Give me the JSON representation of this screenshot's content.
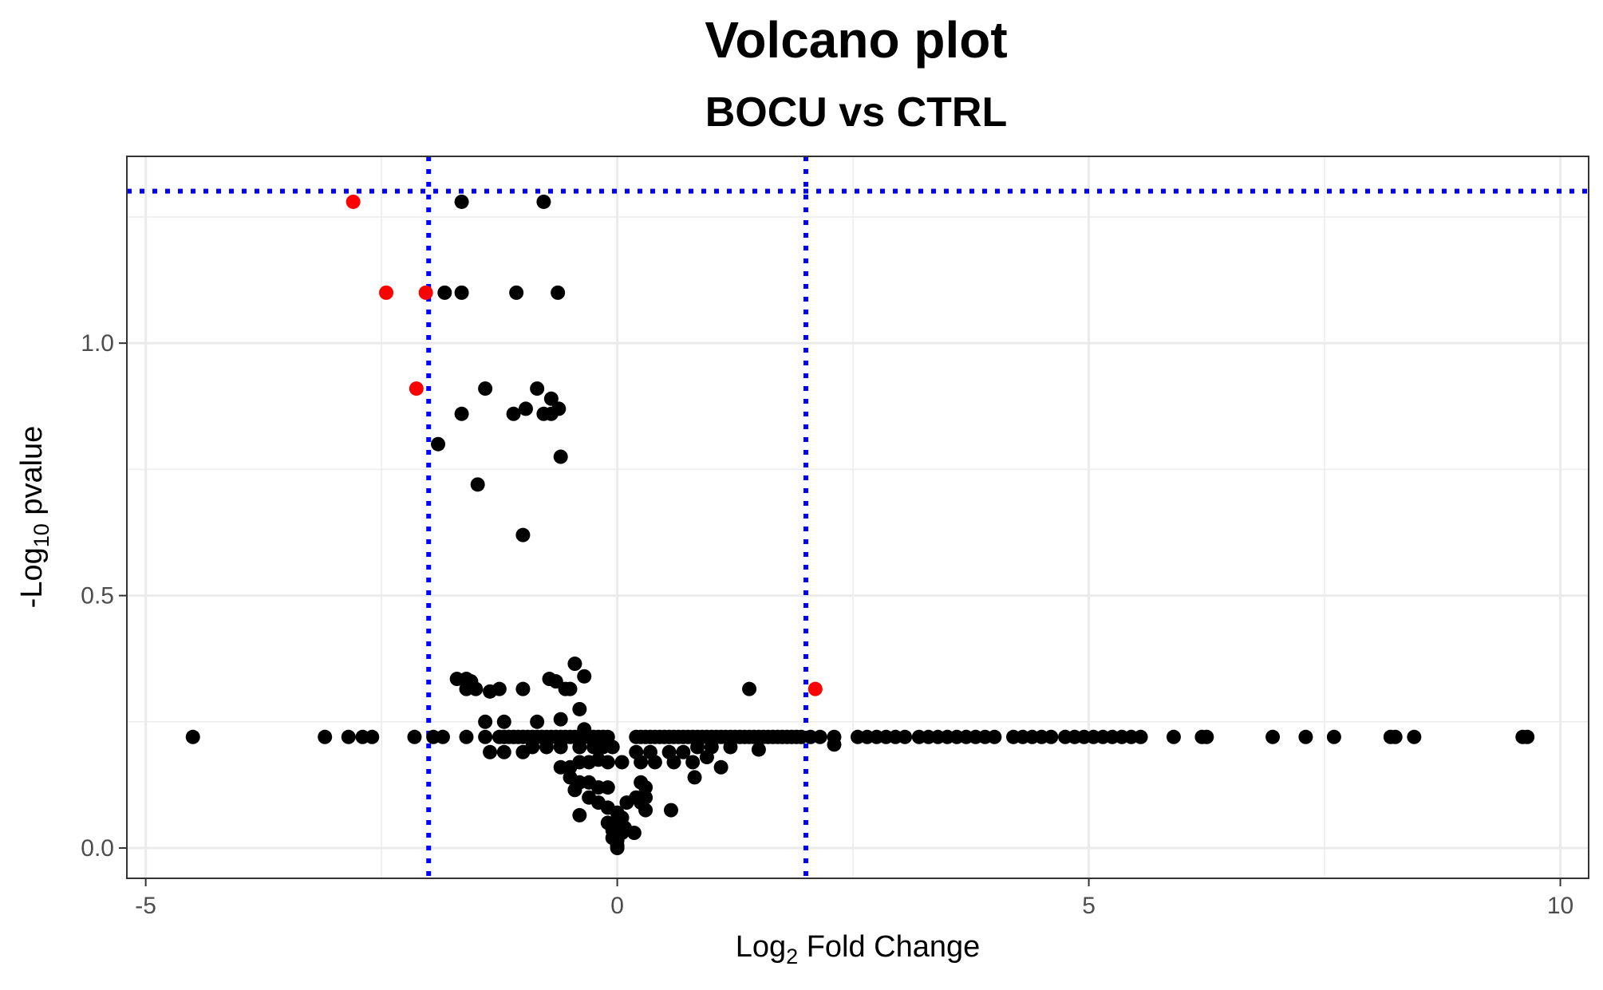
{
  "chart_data": {
    "type": "scatter",
    "title": "Volcano plot",
    "subtitle": "BOCU vs CTRL",
    "xlabel": {
      "prefix": "Log",
      "sub": "2",
      "suffix": " Fold Change"
    },
    "ylabel": {
      "prefix": "-Log",
      "sub": "10",
      "suffix": " pvalue"
    },
    "xlim": [
      -5.2,
      10.3
    ],
    "ylim": [
      -0.06,
      1.37
    ],
    "x_ticks": [
      {
        "value": -5,
        "label": "-5"
      },
      {
        "value": 0,
        "label": "0"
      },
      {
        "value": 5,
        "label": "5"
      },
      {
        "value": 10,
        "label": "10"
      }
    ],
    "y_ticks": [
      {
        "value": 0.0,
        "label": "0.0"
      },
      {
        "value": 0.5,
        "label": "0.5"
      },
      {
        "value": 1.0,
        "label": "1.0"
      }
    ],
    "x_minor_grid": [
      -2.5,
      2.5,
      7.5
    ],
    "y_minor_grid": [
      0.25,
      0.75,
      1.25
    ],
    "grid": true,
    "threshold_lines": {
      "color": "#0000ff",
      "style": "dotted",
      "vertical_x": [
        -2,
        2
      ],
      "horizontal_y": [
        1.301
      ]
    },
    "colors": {
      "significant": "#ff0000",
      "not_significant": "#000000"
    },
    "series": [
      {
        "color": "#ff0000",
        "points": [
          [
            -2.8,
            1.28
          ],
          [
            -2.45,
            1.1
          ],
          [
            -2.03,
            1.1
          ],
          [
            -2.13,
            0.91
          ],
          [
            2.1,
            0.315
          ]
        ]
      },
      {
        "color": "#000000",
        "points": [
          [
            -1.65,
            1.28
          ],
          [
            -0.78,
            1.28
          ],
          [
            -1.83,
            1.1
          ],
          [
            -1.65,
            1.1
          ],
          [
            -1.07,
            1.1
          ],
          [
            -0.63,
            1.1
          ],
          [
            -1.4,
            0.91
          ],
          [
            -0.85,
            0.91
          ],
          [
            -0.7,
            0.89
          ],
          [
            -1.65,
            0.86
          ],
          [
            -1.1,
            0.86
          ],
          [
            -0.97,
            0.87
          ],
          [
            -0.78,
            0.86
          ],
          [
            -0.7,
            0.86
          ],
          [
            -0.62,
            0.87
          ],
          [
            -1.9,
            0.8
          ],
          [
            -0.6,
            0.775
          ],
          [
            -1.48,
            0.72
          ],
          [
            -1.0,
            0.62
          ],
          [
            -1.7,
            0.335
          ],
          [
            -1.6,
            0.335
          ],
          [
            -1.55,
            0.33
          ],
          [
            -1.6,
            0.315
          ],
          [
            -1.5,
            0.315
          ],
          [
            -1.35,
            0.31
          ],
          [
            -1.25,
            0.315
          ],
          [
            -1.0,
            0.315
          ],
          [
            -0.72,
            0.335
          ],
          [
            -0.65,
            0.33
          ],
          [
            -0.45,
            0.365
          ],
          [
            -0.35,
            0.34
          ],
          [
            -0.55,
            0.315
          ],
          [
            -0.5,
            0.315
          ],
          [
            -0.6,
            0.255
          ],
          [
            -0.85,
            0.25
          ],
          [
            -1.2,
            0.25
          ],
          [
            -1.4,
            0.25
          ],
          [
            -0.4,
            0.275
          ],
          [
            -0.35,
            0.235
          ],
          [
            1.4,
            0.315
          ],
          [
            -4.5,
            0.22
          ],
          [
            -3.1,
            0.22
          ],
          [
            -2.85,
            0.22
          ],
          [
            -2.7,
            0.22
          ],
          [
            -2.6,
            0.22
          ],
          [
            -2.15,
            0.22
          ],
          [
            -1.95,
            0.22
          ],
          [
            -1.85,
            0.22
          ],
          [
            -1.6,
            0.22
          ],
          [
            -1.4,
            0.22
          ],
          [
            -1.25,
            0.22
          ],
          [
            -1.2,
            0.22
          ],
          [
            -1.15,
            0.22
          ],
          [
            -1.1,
            0.22
          ],
          [
            -1.05,
            0.22
          ],
          [
            -1.0,
            0.22
          ],
          [
            -0.95,
            0.22
          ],
          [
            -0.9,
            0.22
          ],
          [
            -0.85,
            0.22
          ],
          [
            -0.8,
            0.22
          ],
          [
            -0.75,
            0.22
          ],
          [
            -0.7,
            0.22
          ],
          [
            -0.65,
            0.22
          ],
          [
            -0.6,
            0.22
          ],
          [
            -0.55,
            0.22
          ],
          [
            -0.5,
            0.22
          ],
          [
            -0.45,
            0.22
          ],
          [
            -0.4,
            0.22
          ],
          [
            -0.35,
            0.22
          ],
          [
            -0.3,
            0.22
          ],
          [
            -0.25,
            0.22
          ],
          [
            -0.2,
            0.22
          ],
          [
            -0.15,
            0.22
          ],
          [
            -0.1,
            0.22
          ],
          [
            0.2,
            0.22
          ],
          [
            0.25,
            0.22
          ],
          [
            0.3,
            0.22
          ],
          [
            0.35,
            0.22
          ],
          [
            0.4,
            0.22
          ],
          [
            0.45,
            0.22
          ],
          [
            0.5,
            0.22
          ],
          [
            0.55,
            0.22
          ],
          [
            0.6,
            0.22
          ],
          [
            0.65,
            0.22
          ],
          [
            0.7,
            0.22
          ],
          [
            0.75,
            0.22
          ],
          [
            0.8,
            0.22
          ],
          [
            0.85,
            0.22
          ],
          [
            0.9,
            0.22
          ],
          [
            0.95,
            0.22
          ],
          [
            1.0,
            0.22
          ],
          [
            1.05,
            0.22
          ],
          [
            1.1,
            0.22
          ],
          [
            1.15,
            0.22
          ],
          [
            1.2,
            0.22
          ],
          [
            1.25,
            0.22
          ],
          [
            1.3,
            0.22
          ],
          [
            1.35,
            0.22
          ],
          [
            1.4,
            0.22
          ],
          [
            1.45,
            0.22
          ],
          [
            1.5,
            0.22
          ],
          [
            1.55,
            0.22
          ],
          [
            1.6,
            0.22
          ],
          [
            1.65,
            0.22
          ],
          [
            1.7,
            0.22
          ],
          [
            1.75,
            0.22
          ],
          [
            1.8,
            0.22
          ],
          [
            1.85,
            0.22
          ],
          [
            1.9,
            0.22
          ],
          [
            1.95,
            0.22
          ],
          [
            2.05,
            0.22
          ],
          [
            2.15,
            0.22
          ],
          [
            2.3,
            0.22
          ],
          [
            2.55,
            0.22
          ],
          [
            2.65,
            0.22
          ],
          [
            2.75,
            0.22
          ],
          [
            2.85,
            0.22
          ],
          [
            2.95,
            0.22
          ],
          [
            3.05,
            0.22
          ],
          [
            3.2,
            0.22
          ],
          [
            3.3,
            0.22
          ],
          [
            3.4,
            0.22
          ],
          [
            3.5,
            0.22
          ],
          [
            3.6,
            0.22
          ],
          [
            3.7,
            0.22
          ],
          [
            3.8,
            0.22
          ],
          [
            3.9,
            0.22
          ],
          [
            4.0,
            0.22
          ],
          [
            4.2,
            0.22
          ],
          [
            4.3,
            0.22
          ],
          [
            4.4,
            0.22
          ],
          [
            4.5,
            0.22
          ],
          [
            4.6,
            0.22
          ],
          [
            4.75,
            0.22
          ],
          [
            4.85,
            0.22
          ],
          [
            4.95,
            0.22
          ],
          [
            5.05,
            0.22
          ],
          [
            5.15,
            0.22
          ],
          [
            5.25,
            0.22
          ],
          [
            5.35,
            0.22
          ],
          [
            5.45,
            0.22
          ],
          [
            5.55,
            0.22
          ],
          [
            5.9,
            0.22
          ],
          [
            6.2,
            0.22
          ],
          [
            6.25,
            0.22
          ],
          [
            6.95,
            0.22
          ],
          [
            7.3,
            0.22
          ],
          [
            7.6,
            0.22
          ],
          [
            8.2,
            0.22
          ],
          [
            8.25,
            0.22
          ],
          [
            8.45,
            0.22
          ],
          [
            9.6,
            0.22
          ],
          [
            9.65,
            0.22
          ],
          [
            -1.35,
            0.19
          ],
          [
            -1.2,
            0.19
          ],
          [
            -1.0,
            0.19
          ],
          [
            -0.9,
            0.2
          ],
          [
            -0.75,
            0.2
          ],
          [
            -0.6,
            0.2
          ],
          [
            -0.4,
            0.2
          ],
          [
            -0.25,
            0.2
          ],
          [
            -0.15,
            0.2
          ],
          [
            -0.05,
            0.2
          ],
          [
            0.2,
            0.19
          ],
          [
            0.35,
            0.19
          ],
          [
            0.55,
            0.19
          ],
          [
            0.7,
            0.19
          ],
          [
            0.85,
            0.2
          ],
          [
            1.0,
            0.2
          ],
          [
            1.2,
            0.2
          ],
          [
            1.5,
            0.195
          ],
          [
            2.3,
            0.205
          ],
          [
            -0.6,
            0.16
          ],
          [
            -0.5,
            0.16
          ],
          [
            -0.4,
            0.17
          ],
          [
            -0.3,
            0.17
          ],
          [
            -0.2,
            0.175
          ],
          [
            -0.1,
            0.17
          ],
          [
            0.05,
            0.17
          ],
          [
            0.25,
            0.17
          ],
          [
            0.4,
            0.17
          ],
          [
            0.6,
            0.17
          ],
          [
            0.8,
            0.17
          ],
          [
            1.1,
            0.16
          ],
          [
            0.95,
            0.18
          ],
          [
            0.82,
            0.14
          ],
          [
            -0.5,
            0.14
          ],
          [
            -0.4,
            0.13
          ],
          [
            -0.3,
            0.13
          ],
          [
            -0.2,
            0.12
          ],
          [
            -0.1,
            0.12
          ],
          [
            0.25,
            0.13
          ],
          [
            0.3,
            0.12
          ],
          [
            -0.45,
            0.115
          ],
          [
            -0.3,
            0.1
          ],
          [
            -0.2,
            0.09
          ],
          [
            -0.1,
            0.08
          ],
          [
            0.0,
            0.07
          ],
          [
            0.2,
            0.1
          ],
          [
            0.3,
            0.1
          ],
          [
            0.1,
            0.09
          ],
          [
            0.25,
            0.09
          ],
          [
            0.3,
            0.075
          ],
          [
            0.57,
            0.075
          ],
          [
            -0.4,
            0.065
          ],
          [
            0.05,
            0.06
          ],
          [
            -0.1,
            0.05
          ],
          [
            0.0,
            0.05
          ],
          [
            0.08,
            0.04
          ],
          [
            -0.05,
            0.035
          ],
          [
            0.05,
            0.03
          ],
          [
            0.18,
            0.03
          ],
          [
            -0.05,
            0.02
          ],
          [
            0.0,
            0.015
          ],
          [
            0.0,
            0.005
          ],
          [
            0.0,
            0.0
          ]
        ]
      }
    ]
  }
}
